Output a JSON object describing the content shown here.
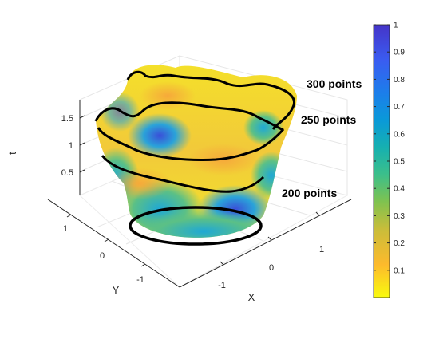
{
  "chart_data": {
    "type": "surface3d",
    "title": "",
    "axes": {
      "x": {
        "label": "X",
        "ticks": [
          "-1",
          "0",
          "1"
        ]
      },
      "y": {
        "label": "Y",
        "ticks": [
          "-1",
          "0",
          "1"
        ]
      },
      "z": {
        "label": "t",
        "ticks": [
          "0.5",
          "1",
          "1.5"
        ],
        "range": [
          0,
          1.8
        ]
      }
    },
    "grid": true,
    "surface": {
      "description": "3D surface with t from 0 to ~1.8, cross-section radius growing with t, lobed boundary near top",
      "colormap": "parula_reversed"
    },
    "contour_annotations": [
      {
        "label": "300 points",
        "t": 1.75
      },
      {
        "label": "250 points",
        "t": 1.5
      },
      {
        "label": "200 points",
        "t": 1.1
      }
    ],
    "colorbar": {
      "range": [
        0,
        1
      ],
      "ticks": [
        "0.1",
        "0.2",
        "0.3",
        "0.4",
        "0.5",
        "0.6",
        "0.7",
        "0.8",
        "0.9",
        "1"
      ],
      "colors": [
        "#f9fb0e",
        "#fdba2c",
        "#dbb935",
        "#9ac037",
        "#47c17a",
        "#17b5a8",
        "#09a3d8",
        "#1780e8",
        "#3b5af0",
        "#4434c5"
      ]
    }
  }
}
